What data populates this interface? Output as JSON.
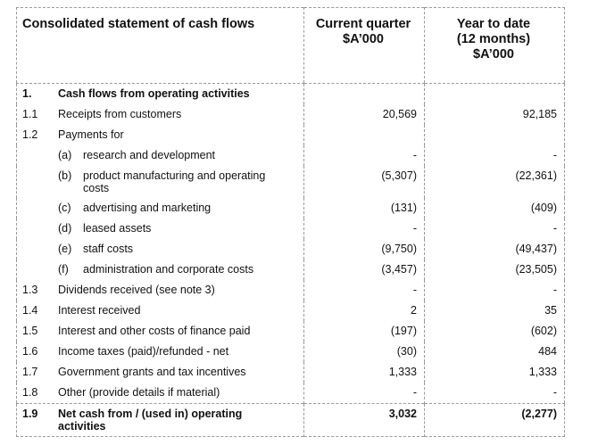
{
  "header": {
    "title": "Consolidated statement of cash flows",
    "current": [
      "Current quarter",
      "$A’000"
    ],
    "ytd": [
      "Year to date",
      "(12 months)",
      "$A’000"
    ]
  },
  "rows": [
    {
      "num": "1.",
      "label": "Cash flows from operating activities"
    },
    {
      "num": "1.1",
      "label": "Receipts from customers",
      "current": "20,569",
      "ytd": "92,185"
    },
    {
      "num": "1.2",
      "label": "Payments for"
    },
    {
      "sub": "(a)",
      "label": "research and development",
      "current": "-",
      "ytd": "-"
    },
    {
      "sub": "(b)",
      "label": "product manufacturing and operating costs",
      "current": "(5,307)",
      "ytd": "(22,361)"
    },
    {
      "sub": "(c)",
      "label": "advertising and marketing",
      "current": "(131)",
      "ytd": "(409)"
    },
    {
      "sub": "(d)",
      "label": "leased assets",
      "current": "-",
      "ytd": "-"
    },
    {
      "sub": "(e)",
      "label": "staff costs",
      "current": "(9,750)",
      "ytd": "(49,437)"
    },
    {
      "sub": "(f)",
      "label": "administration and corporate costs",
      "current": "(3,457)",
      "ytd": "(23,505)"
    },
    {
      "num": "1.3",
      "label": "Dividends received (see note 3)",
      "current": "-",
      "ytd": "-"
    },
    {
      "num": "1.4",
      "label": "Interest received",
      "current": "2",
      "ytd": "35"
    },
    {
      "num": "1.5",
      "label": "Interest and other costs of finance paid",
      "current": "(197)",
      "ytd": "(602)"
    },
    {
      "num": "1.6",
      "label": "Income taxes (paid)/refunded - net",
      "current": "(30)",
      "ytd": "484"
    },
    {
      "num": "1.7",
      "label": "Government grants and tax incentives",
      "current": "1,333",
      "ytd": "1,333"
    },
    {
      "num": "1.8",
      "label": "Other (provide details if material)",
      "current": "-",
      "ytd": "-"
    },
    {
      "num": "1.9",
      "label": "Net cash from / (used in) operating activities",
      "current": "3,032",
      "ytd": "(2,277)"
    }
  ]
}
